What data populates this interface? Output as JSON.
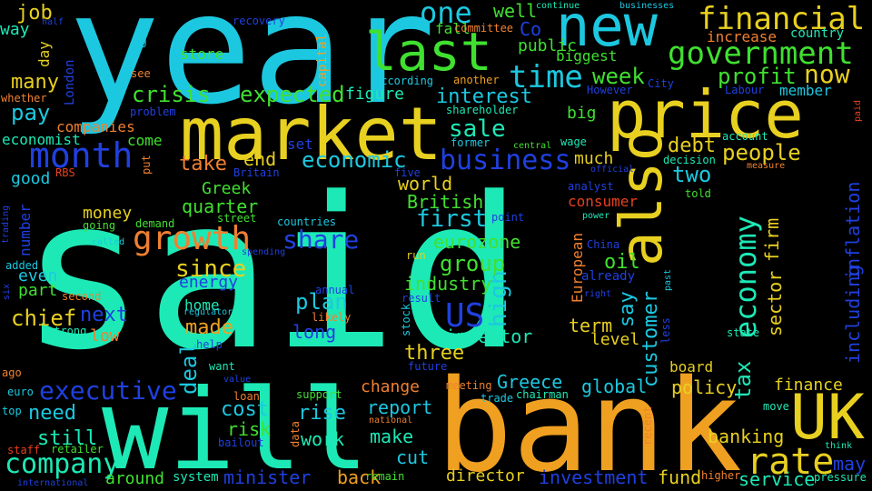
{
  "words": [
    {
      "text": "said",
      "color": "#1DE9B6"
    },
    {
      "text": "year",
      "color": "#1CC8E0"
    },
    {
      "text": "bank",
      "color": "#F0A020"
    },
    {
      "text": "market",
      "color": "#E8D020"
    },
    {
      "text": "will",
      "color": "#1DE9B6"
    },
    {
      "text": "price",
      "color": "#E8D020"
    },
    {
      "text": "also",
      "color": "#E8D020"
    },
    {
      "text": "last",
      "color": "#40E030"
    },
    {
      "text": "new",
      "color": "#1CC8E0"
    },
    {
      "text": "UK",
      "color": "#E8D020"
    },
    {
      "text": "financial",
      "color": "#E8D020"
    },
    {
      "text": "government",
      "color": "#40E030"
    },
    {
      "text": "month",
      "color": "#2040E0"
    },
    {
      "text": "growth",
      "color": "#F08030"
    },
    {
      "text": "rate",
      "color": "#E8D020"
    },
    {
      "text": "business",
      "color": "#2040E0"
    },
    {
      "text": "time",
      "color": "#1CC8E0"
    },
    {
      "text": "economy",
      "color": "#1DE9B6"
    },
    {
      "text": "company",
      "color": "#1DE9B6"
    },
    {
      "text": "one",
      "color": "#1CC8E0"
    },
    {
      "text": "US",
      "color": "#2040E0"
    },
    {
      "text": "share",
      "color": "#2040E0"
    },
    {
      "text": "executive",
      "color": "#2040E0"
    },
    {
      "text": "now",
      "color": "#E8D020"
    },
    {
      "text": "since",
      "color": "#E8D020"
    },
    {
      "text": "sale",
      "color": "#1DE9B6"
    },
    {
      "text": "first",
      "color": "#1CC8E0"
    },
    {
      "text": "economic",
      "color": "#1CC8E0"
    },
    {
      "text": "people",
      "color": "#E8D020"
    },
    {
      "text": "profit",
      "color": "#40E030"
    },
    {
      "text": "crisis",
      "color": "#40E030"
    },
    {
      "text": "expected",
      "color": "#40E030"
    },
    {
      "text": "week",
      "color": "#40E030"
    },
    {
      "text": "interest",
      "color": "#1CC8E0"
    },
    {
      "text": "chief",
      "color": "#E8D020"
    },
    {
      "text": "high",
      "color": "#1CC8E0"
    },
    {
      "text": "customer",
      "color": "#1CC8E0"
    },
    {
      "text": "group",
      "color": "#40E030"
    },
    {
      "text": "plan",
      "color": "#1CC8E0"
    },
    {
      "text": "made",
      "color": "#F0A020"
    },
    {
      "text": "deal",
      "color": "#1CC8E0"
    },
    {
      "text": "cost",
      "color": "#1CC8E0"
    },
    {
      "text": "tax",
      "color": "#1DE9B6"
    },
    {
      "text": "sector",
      "color": "#E8D020"
    },
    {
      "text": "firm",
      "color": "#E8D020"
    },
    {
      "text": "including",
      "color": "#2040E0"
    },
    {
      "text": "inflation",
      "color": "#2040E0"
    },
    {
      "text": "say",
      "color": "#1CC8E0"
    },
    {
      "text": "next",
      "color": "#2040E0"
    },
    {
      "text": "take",
      "color": "#F08030"
    },
    {
      "text": "end",
      "color": "#E8D020"
    },
    {
      "text": "debt",
      "color": "#E8D020"
    },
    {
      "text": "two",
      "color": "#1CC8E0"
    },
    {
      "text": "three",
      "color": "#E8D020"
    },
    {
      "text": "pay",
      "color": "#1CC8E0"
    },
    {
      "text": "many",
      "color": "#E8D020"
    },
    {
      "text": "job",
      "color": "#E8D020"
    },
    {
      "text": "well",
      "color": "#40E030"
    },
    {
      "text": "eurozone",
      "color": "#40E030"
    },
    {
      "text": "oil",
      "color": "#40E030"
    },
    {
      "text": "world",
      "color": "#E8D020"
    },
    {
      "text": "British",
      "color": "#40E030"
    },
    {
      "text": "industry",
      "color": "#40E030"
    },
    {
      "text": "investor",
      "color": "#1DE9B6"
    },
    {
      "text": "long",
      "color": "#2040E0"
    },
    {
      "text": "term",
      "color": "#E8D020"
    },
    {
      "text": "level",
      "color": "#E8D020"
    },
    {
      "text": "global",
      "color": "#1CC8E0"
    },
    {
      "text": "policy",
      "color": "#E8D020"
    },
    {
      "text": "finance",
      "color": "#E8D020"
    },
    {
      "text": "banking",
      "color": "#E8D020"
    },
    {
      "text": "may",
      "color": "#2040E0"
    },
    {
      "text": "service",
      "color": "#1DE9B6"
    },
    {
      "text": "fund",
      "color": "#E8D020"
    },
    {
      "text": "investment",
      "color": "#2040E0"
    },
    {
      "text": "director",
      "color": "#E8D020"
    },
    {
      "text": "back",
      "color": "#F0A020"
    },
    {
      "text": "minister",
      "color": "#2040E0"
    },
    {
      "text": "cut",
      "color": "#1CC8E0"
    },
    {
      "text": "make",
      "color": "#1DE9B6"
    },
    {
      "text": "report",
      "color": "#1CC8E0"
    },
    {
      "text": "change",
      "color": "#F08030"
    },
    {
      "text": "rise",
      "color": "#1CC8E0"
    },
    {
      "text": "risk",
      "color": "#40E030"
    },
    {
      "text": "work",
      "color": "#1DE9B6"
    },
    {
      "text": "need",
      "color": "#1CC8E0"
    },
    {
      "text": "still",
      "color": "#1DE9B6"
    },
    {
      "text": "around",
      "color": "#40E030"
    },
    {
      "text": "system",
      "color": "#1DE9B6"
    },
    {
      "text": "Greece",
      "color": "#1CC8E0"
    },
    {
      "text": "board",
      "color": "#E8D020"
    },
    {
      "text": "money",
      "color": "#E8D020"
    },
    {
      "text": "quarter",
      "color": "#40E030"
    },
    {
      "text": "Greek",
      "color": "#40E030"
    },
    {
      "text": "energy",
      "color": "#2040E0"
    },
    {
      "text": "home",
      "color": "#1DE9B6"
    },
    {
      "text": "low",
      "color": "#F08030"
    },
    {
      "text": "part",
      "color": "#40E030"
    },
    {
      "text": "even",
      "color": "#1CC8E0"
    },
    {
      "text": "good",
      "color": "#1CC8E0"
    },
    {
      "text": "number",
      "color": "#2040E0"
    },
    {
      "text": "economist",
      "color": "#1DE9B6"
    },
    {
      "text": "companies",
      "color": "#F08030"
    },
    {
      "text": "come",
      "color": "#40E030"
    },
    {
      "text": "set",
      "color": "#2040E0"
    },
    {
      "text": "figure",
      "color": "#1DE9B6"
    },
    {
      "text": "biggest",
      "color": "#40E030"
    },
    {
      "text": "public",
      "color": "#40E030"
    },
    {
      "text": "store",
      "color": "#40E030"
    },
    {
      "text": "day",
      "color": "#E8D020"
    },
    {
      "text": "way",
      "color": "#1DE9B6"
    },
    {
      "text": "fall",
      "color": "#40E030"
    },
    {
      "text": "Co",
      "color": "#2040E0"
    },
    {
      "text": "increase",
      "color": "#F08030"
    },
    {
      "text": "country",
      "color": "#1DE9B6"
    },
    {
      "text": "member",
      "color": "#1CC8E0"
    },
    {
      "text": "much",
      "color": "#E8D020"
    },
    {
      "text": "big",
      "color": "#40E030"
    },
    {
      "text": "European",
      "color": "#F08030"
    },
    {
      "text": "consumer",
      "color": "#E84020"
    },
    {
      "text": "London",
      "color": "#2040E0"
    },
    {
      "text": "capital",
      "color": "#F0A020"
    },
    {
      "text": "EU",
      "color": "#1CC8E0"
    },
    {
      "text": "half",
      "color": "#2040E0"
    },
    {
      "text": "recovery",
      "color": "#2040E0"
    },
    {
      "text": "committee",
      "color": "#F08030"
    },
    {
      "text": "continue",
      "color": "#1DE9B6"
    },
    {
      "text": "businesses",
      "color": "#1CC8E0"
    },
    {
      "text": "see",
      "color": "#F08030"
    },
    {
      "text": "another",
      "color": "#F0A020"
    },
    {
      "text": "according",
      "color": "#1CC8E0"
    },
    {
      "text": "City",
      "color": "#2040E0"
    },
    {
      "text": "Labour",
      "color": "#2040E0"
    },
    {
      "text": "However",
      "color": "#2040E0"
    },
    {
      "text": "account",
      "color": "#1DE9B6"
    },
    {
      "text": "whether",
      "color": "#F08030"
    },
    {
      "text": "problem",
      "color": "#2040E0"
    },
    {
      "text": "shareholder",
      "color": "#1DE9B6"
    },
    {
      "text": "former",
      "color": "#1CC8E0"
    },
    {
      "text": "central",
      "color": "#40E030"
    },
    {
      "text": "wage",
      "color": "#1DE9B6"
    },
    {
      "text": "decision",
      "color": "#1DE9B6"
    },
    {
      "text": "measure",
      "color": "#F08030"
    },
    {
      "text": "paid",
      "color": "#E84020"
    },
    {
      "text": "RBS",
      "color": "#E84020"
    },
    {
      "text": "put",
      "color": "#F08030"
    },
    {
      "text": "Britain",
      "color": "#2040E0"
    },
    {
      "text": "five",
      "color": "#2040E0"
    },
    {
      "text": "official",
      "color": "#2040E0"
    },
    {
      "text": "analyst",
      "color": "#2040E0"
    },
    {
      "text": "told",
      "color": "#40E030"
    },
    {
      "text": "trading",
      "color": "#2040E0"
    },
    {
      "text": "going",
      "color": "#40E030"
    },
    {
      "text": "demand",
      "color": "#40E030"
    },
    {
      "text": "street",
      "color": "#40E030"
    },
    {
      "text": "countries",
      "color": "#1CC8E0"
    },
    {
      "text": "point",
      "color": "#2040E0"
    },
    {
      "text": "power",
      "color": "#1DE9B6"
    },
    {
      "text": "added",
      "color": "#1CC8E0"
    },
    {
      "text": "called",
      "color": "#1CC8E0"
    },
    {
      "text": "spending",
      "color": "#2040E0"
    },
    {
      "text": "run",
      "color": "#E8D020"
    },
    {
      "text": "China",
      "color": "#2040E0"
    },
    {
      "text": "already",
      "color": "#2040E0"
    },
    {
      "text": "past",
      "color": "#1CC8E0"
    },
    {
      "text": "six",
      "color": "#2040E0"
    },
    {
      "text": "second",
      "color": "#F08030"
    },
    {
      "text": "annual",
      "color": "#2040E0"
    },
    {
      "text": "result",
      "color": "#2040E0"
    },
    {
      "text": "right",
      "color": "#2040E0"
    },
    {
      "text": "regulator",
      "color": "#1CC8E0"
    },
    {
      "text": "likely",
      "color": "#F08030"
    },
    {
      "text": "stock",
      "color": "#1CC8E0"
    },
    {
      "text": "strong",
      "color": "#1DE9B6"
    },
    {
      "text": "help",
      "color": "#2040E0"
    },
    {
      "text": "less",
      "color": "#2040E0"
    },
    {
      "text": "state",
      "color": "#1DE9B6"
    },
    {
      "text": "ago",
      "color": "#F08030"
    },
    {
      "text": "want",
      "color": "#1DE9B6"
    },
    {
      "text": "future",
      "color": "#2040E0"
    },
    {
      "text": "value",
      "color": "#2040E0"
    },
    {
      "text": "euro",
      "color": "#1CC8E0"
    },
    {
      "text": "loan",
      "color": "#F08030"
    },
    {
      "text": "support",
      "color": "#40E030"
    },
    {
      "text": "meeting",
      "color": "#F08030"
    },
    {
      "text": "trade",
      "color": "#1CC8E0"
    },
    {
      "text": "chairman",
      "color": "#1DE9B6"
    },
    {
      "text": "move",
      "color": "#1DE9B6"
    },
    {
      "text": "top",
      "color": "#1CC8E0"
    },
    {
      "text": "national",
      "color": "#F08030"
    },
    {
      "text": "data",
      "color": "#F08030"
    },
    {
      "text": "recent",
      "color": "#F08030"
    },
    {
      "text": "think",
      "color": "#1DE9B6"
    },
    {
      "text": "staff",
      "color": "#E84020"
    },
    {
      "text": "retailer",
      "color": "#40E030"
    },
    {
      "text": "bailout",
      "color": "#2040E0"
    },
    {
      "text": "international",
      "color": "#2040E0"
    },
    {
      "text": "remain",
      "color": "#40E030"
    },
    {
      "text": "higher",
      "color": "#F08030"
    },
    {
      "text": "pressure",
      "color": "#1DE9B6"
    }
  ]
}
